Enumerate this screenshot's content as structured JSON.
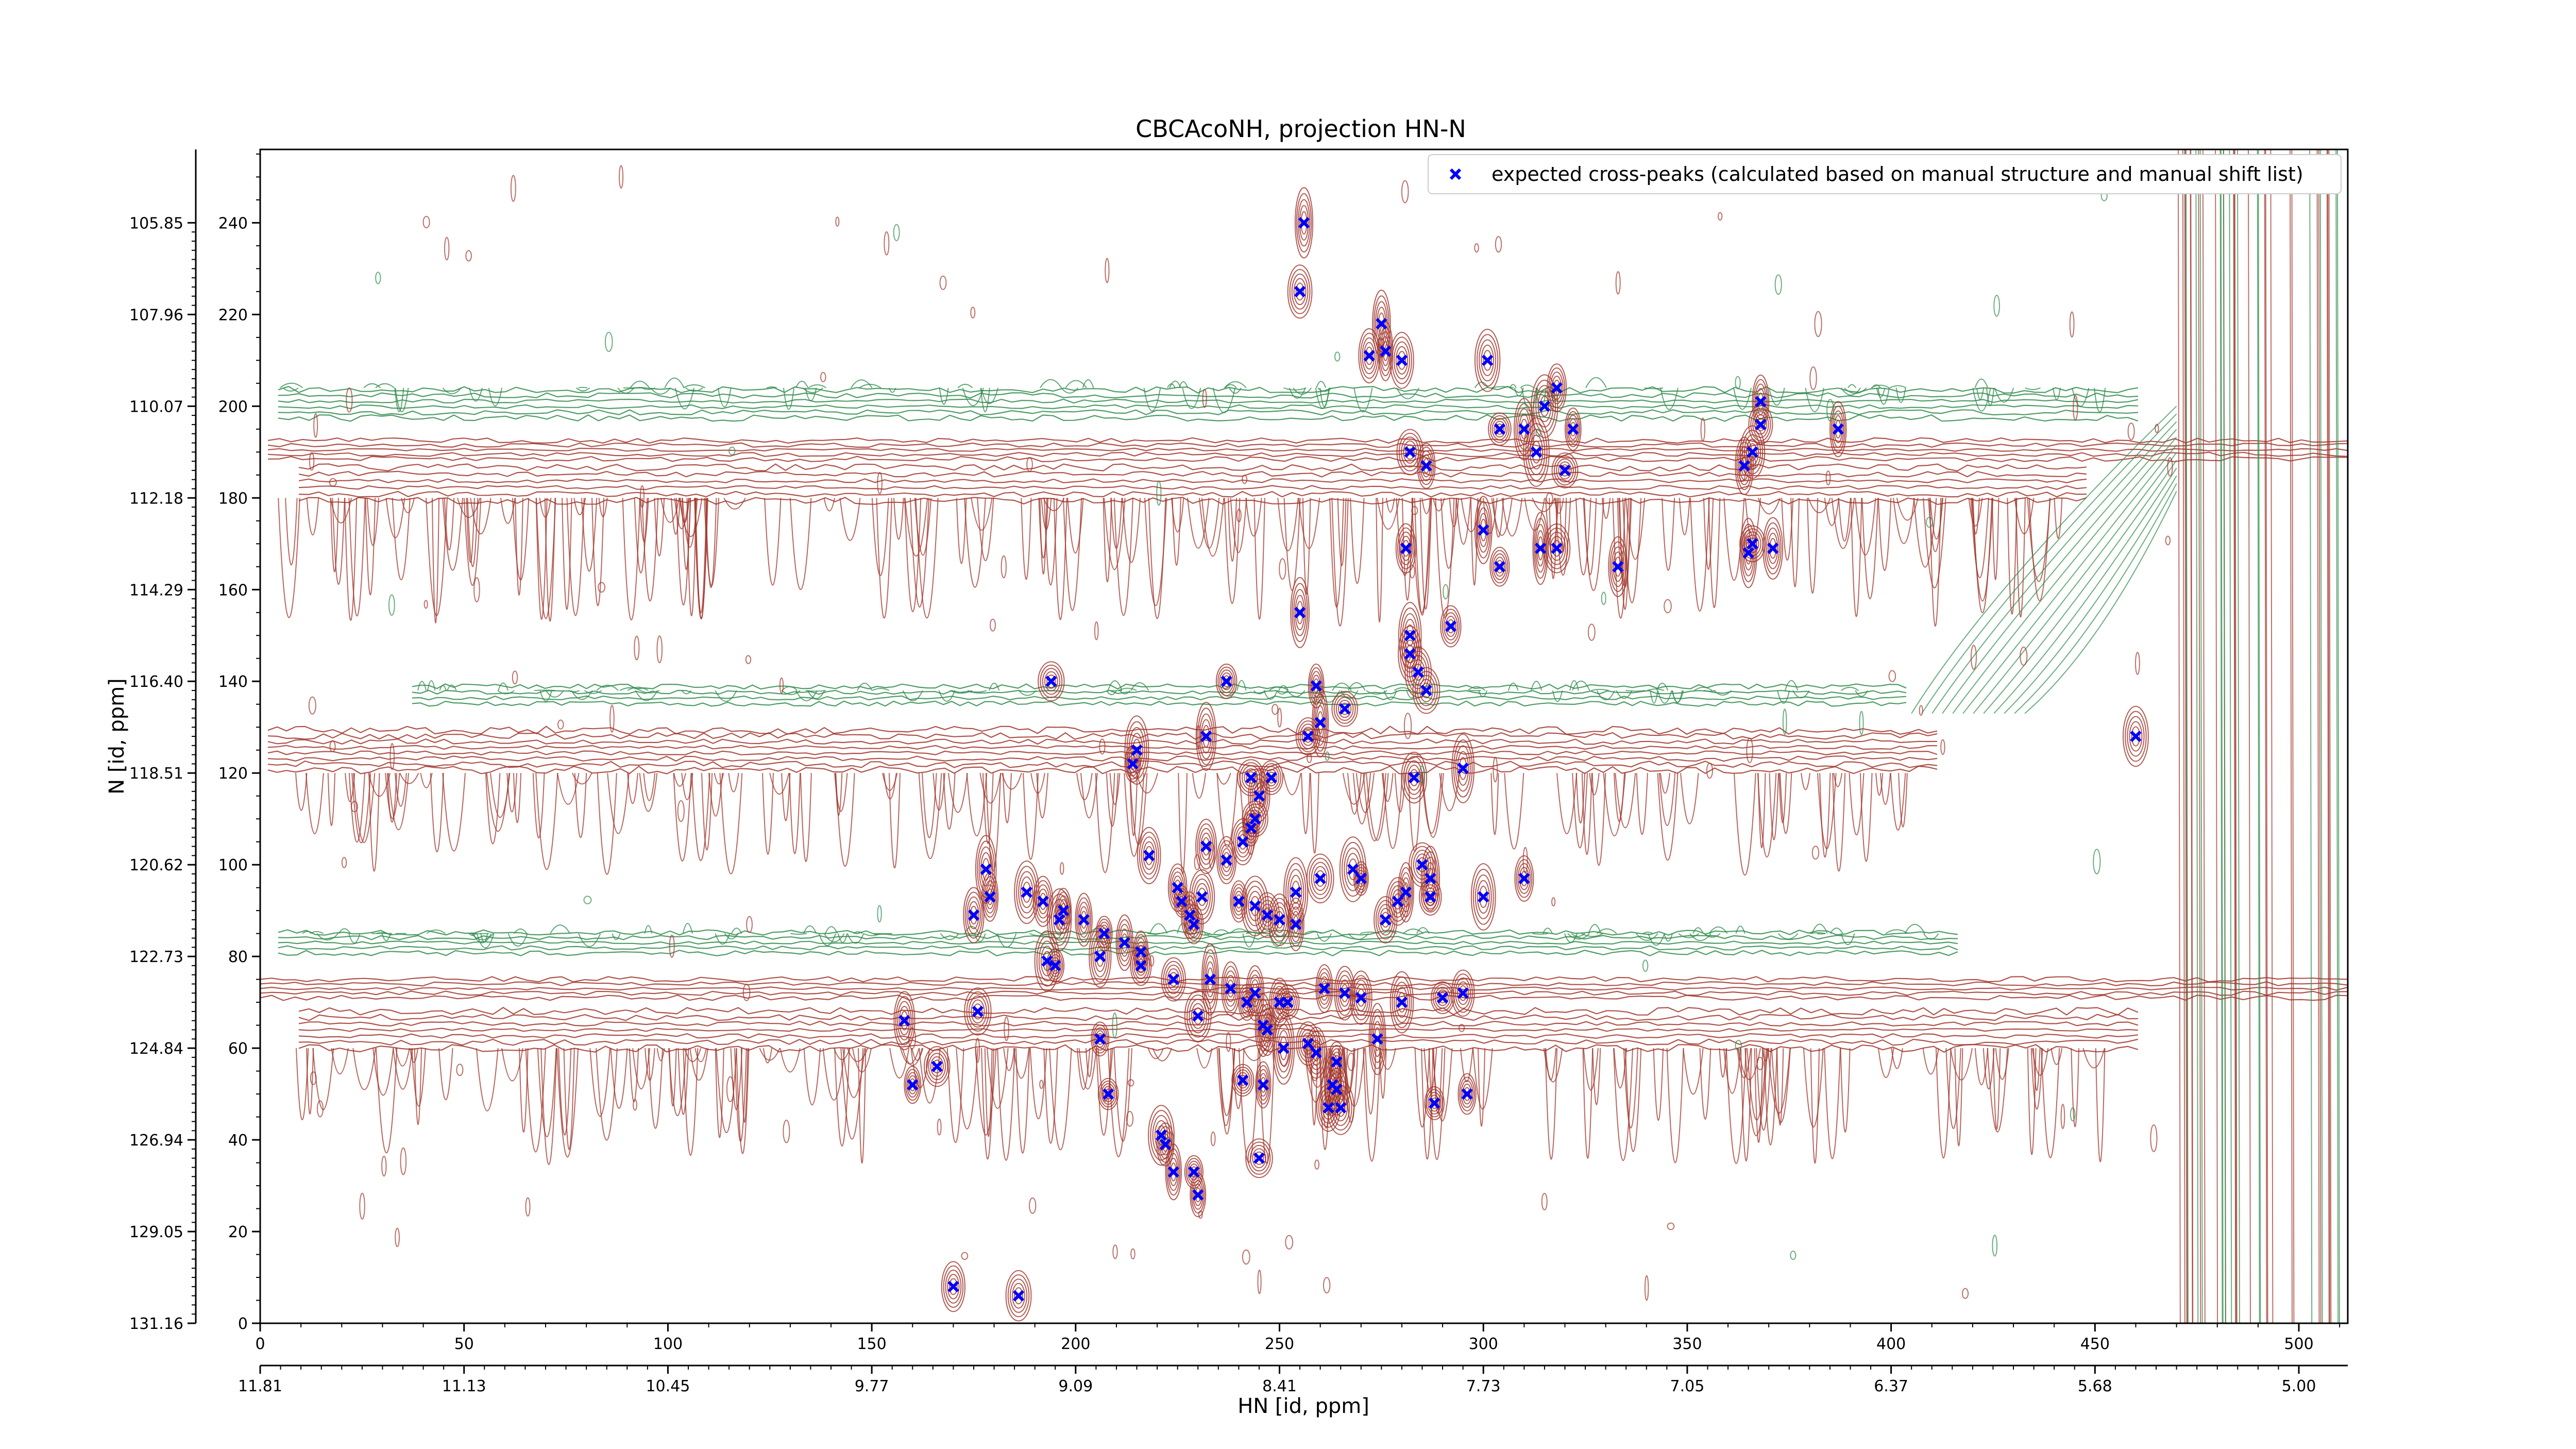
{
  "chart_data": {
    "type": "scatter",
    "title": "CBCAcoNH, projection HN-N",
    "xlabel": "HN [id, ppm]",
    "ylabel": "N [id, ppm]",
    "xlim": [
      0,
      512
    ],
    "ylim": [
      0,
      256
    ],
    "x_ticks": [
      0,
      50,
      100,
      150,
      200,
      250,
      300,
      350,
      400,
      450,
      500
    ],
    "y_ticks": [
      0,
      20,
      40,
      60,
      80,
      100,
      120,
      140,
      160,
      180,
      200,
      220,
      240
    ],
    "x_ppm_ticks": [
      "11.81",
      "11.13",
      "10.45",
      "9.77",
      "9.09",
      "8.41",
      "7.73",
      "7.05",
      "6.37",
      "5.68",
      "5.00"
    ],
    "y_ppm_ticks": [
      "131.16",
      "129.05",
      "126.94",
      "124.84",
      "122.73",
      "120.62",
      "118.51",
      "116.40",
      "114.29",
      "112.18",
      "110.07",
      "107.96",
      "105.85"
    ],
    "legend_position": "top-right",
    "grid": false,
    "colors": {
      "marker": "#0000ff",
      "positive_contour": "#a0342a",
      "negative_contour": "#2e8b4a"
    },
    "series": [
      {
        "name": "expected cross-peaks (calculated based on manual structure and manual shift list)",
        "marker": "x",
        "points": [
          [
            256,
            240
          ],
          [
            255,
            225
          ],
          [
            275,
            218
          ],
          [
            272,
            211
          ],
          [
            276,
            212
          ],
          [
            280,
            210
          ],
          [
            301,
            210
          ],
          [
            318,
            204
          ],
          [
            315,
            200
          ],
          [
            304,
            195
          ],
          [
            310,
            195
          ],
          [
            322,
            195
          ],
          [
            368,
            201
          ],
          [
            368,
            196
          ],
          [
            366,
            190
          ],
          [
            364,
            187
          ],
          [
            387,
            195
          ],
          [
            282,
            190
          ],
          [
            286,
            187
          ],
          [
            313,
            190
          ],
          [
            320,
            186
          ],
          [
            300,
            173
          ],
          [
            304,
            165
          ],
          [
            314,
            169
          ],
          [
            318,
            169
          ],
          [
            333,
            165
          ],
          [
            365,
            168
          ],
          [
            366,
            170
          ],
          [
            371,
            169
          ],
          [
            281,
            169
          ],
          [
            255,
            155
          ],
          [
            282,
            150
          ],
          [
            292,
            152
          ],
          [
            282,
            146
          ],
          [
            284,
            142
          ],
          [
            286,
            138
          ],
          [
            194,
            140
          ],
          [
            237,
            140
          ],
          [
            259,
            139
          ],
          [
            260,
            131
          ],
          [
            266,
            134
          ],
          [
            257,
            128
          ],
          [
            215,
            125
          ],
          [
            214,
            122
          ],
          [
            232,
            128
          ],
          [
            283,
            119
          ],
          [
            295,
            121
          ],
          [
            460,
            128
          ],
          [
            243,
            119
          ],
          [
            245,
            115
          ],
          [
            248,
            119
          ],
          [
            244,
            110
          ],
          [
            243,
            108
          ],
          [
            241,
            105
          ],
          [
            232,
            104
          ],
          [
            237,
            101
          ],
          [
            218,
            102
          ],
          [
            254,
            94
          ],
          [
            260,
            97
          ],
          [
            268,
            99
          ],
          [
            270,
            97
          ],
          [
            285,
            100
          ],
          [
            287,
            97
          ],
          [
            281,
            94
          ],
          [
            254,
            87
          ],
          [
            276,
            88
          ],
          [
            279,
            92
          ],
          [
            287,
            93
          ],
          [
            300,
            93
          ],
          [
            310,
            97
          ],
          [
            178,
            99
          ],
          [
            179,
            93
          ],
          [
            175,
            89
          ],
          [
            188,
            94
          ],
          [
            192,
            92
          ],
          [
            196,
            88
          ],
          [
            197,
            90
          ],
          [
            202,
            88
          ],
          [
            207,
            85
          ],
          [
            212,
            83
          ],
          [
            216,
            81
          ],
          [
            225,
            95
          ],
          [
            226,
            92
          ],
          [
            228,
            89
          ],
          [
            229,
            87
          ],
          [
            231,
            93
          ],
          [
            240,
            92
          ],
          [
            244,
            91
          ],
          [
            247,
            89
          ],
          [
            250,
            88
          ],
          [
            193,
            79
          ],
          [
            195,
            78
          ],
          [
            206,
            80
          ],
          [
            216,
            78
          ],
          [
            224,
            75
          ],
          [
            233,
            75
          ],
          [
            238,
            73
          ],
          [
            242,
            70
          ],
          [
            244,
            72
          ],
          [
            250,
            70
          ],
          [
            252,
            70
          ],
          [
            261,
            73
          ],
          [
            266,
            72
          ],
          [
            270,
            71
          ],
          [
            280,
            70
          ],
          [
            290,
            71
          ],
          [
            295,
            72
          ],
          [
            158,
            66
          ],
          [
            176,
            68
          ],
          [
            230,
            67
          ],
          [
            246,
            65
          ],
          [
            247,
            64
          ],
          [
            251,
            60
          ],
          [
            257,
            61
          ],
          [
            259,
            59
          ],
          [
            264,
            57
          ],
          [
            274,
            62
          ],
          [
            206,
            62
          ],
          [
            160,
            52
          ],
          [
            166,
            56
          ],
          [
            241,
            53
          ],
          [
            246,
            52
          ],
          [
            263,
            52
          ],
          [
            264,
            51
          ],
          [
            262,
            47
          ],
          [
            265,
            47
          ],
          [
            288,
            48
          ],
          [
            296,
            50
          ],
          [
            208,
            50
          ],
          [
            221,
            41
          ],
          [
            222,
            39
          ],
          [
            224,
            33
          ],
          [
            229,
            33
          ],
          [
            230,
            28
          ],
          [
            245,
            36
          ],
          [
            170,
            8
          ],
          [
            186,
            6
          ]
        ]
      }
    ]
  }
}
